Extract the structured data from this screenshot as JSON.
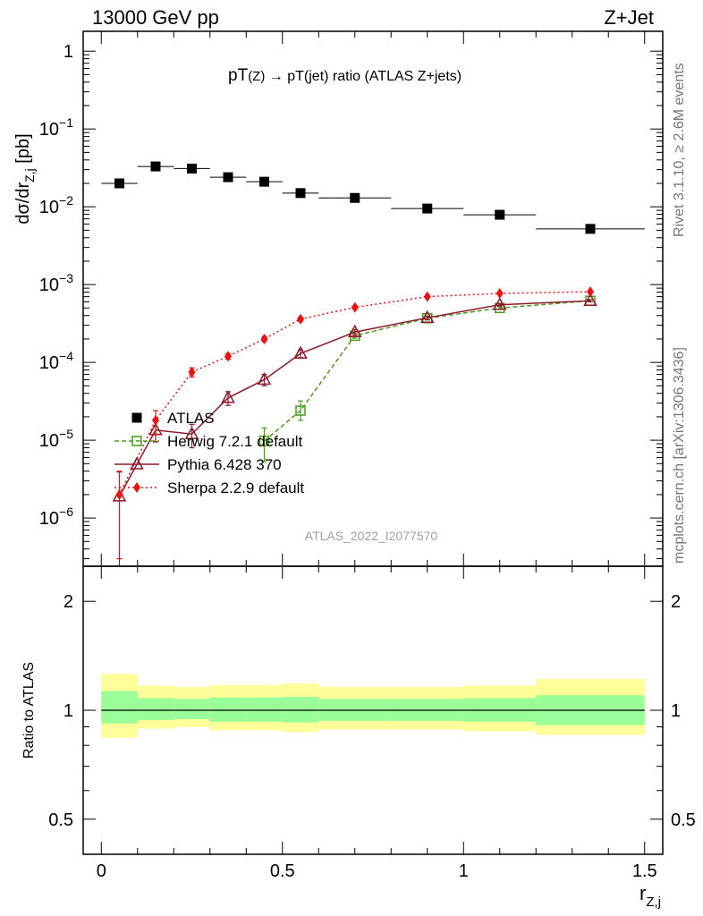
{
  "header": {
    "energy_label": "13000 GeV pp",
    "process_label": "Z+Jet",
    "rivet_label": "Rivet 3.1.10, ≥ 2.6M events",
    "mcplots_label": "mcplots.cern.ch [arXiv:1306.3436]",
    "analysis_id": "ATLAS_2022_I2077570"
  },
  "chart_data": [
    {
      "type": "scatter",
      "panel": "main",
      "title": "pT(Z) → pT(jet) ratio (ATLAS Z+jets)",
      "title_main": "pT",
      "title_sub": "(Z)",
      "title_rest": " → pT(jet) ratio (ATLAS Z+jets)",
      "ylabel": "dσ/dr",
      "ylabel_sub": "Z,j",
      "ylabel_unit": " [pb]",
      "yscale": "log",
      "xlim": [
        -0.05,
        1.55
      ],
      "ylim": [
        2.4e-07,
        1.8
      ],
      "ytick_labels": [
        {
          "base": "10",
          "exp": "−6",
          "value": 1e-06
        },
        {
          "base": "10",
          "exp": "−5",
          "value": 1e-05
        },
        {
          "base": "10",
          "exp": "−4",
          "value": 0.0001
        },
        {
          "base": "10",
          "exp": "−3",
          "value": 0.001
        },
        {
          "base": "10",
          "exp": "−2",
          "value": 0.01
        },
        {
          "base": "10",
          "exp": "−1",
          "value": 0.1
        },
        {
          "base": "1",
          "exp": "",
          "value": 1
        }
      ],
      "series": [
        {
          "name": "ATLAS",
          "color": "#000000",
          "marker": "square-filled",
          "x": [
            0.05,
            0.15,
            0.25,
            0.35,
            0.45,
            0.55,
            0.7,
            0.9,
            1.1,
            1.35
          ],
          "xerr": [
            0.05,
            0.05,
            0.05,
            0.05,
            0.05,
            0.05,
            0.1,
            0.1,
            0.1,
            0.15
          ],
          "y": [
            0.02,
            0.033,
            0.031,
            0.024,
            0.021,
            0.015,
            0.013,
            0.0095,
            0.0079,
            0.0052
          ]
        },
        {
          "name": "Herwig 7.2.1 default",
          "color": "#4a9a1c",
          "marker": "square-open",
          "line": "dashed",
          "x": [
            0.45,
            0.55,
            0.7,
            0.9,
            1.1,
            1.35
          ],
          "y": [
            9.8e-06,
            2.4e-05,
            0.00022,
            0.00037,
            0.0005,
            0.00062
          ],
          "yerr_low": [
            4.5e-06,
            6e-06,
            1.5e-05,
            2e-05,
            2e-05,
            2e-05
          ],
          "yerr_high": [
            4.5e-06,
            8e-06,
            1.5e-05,
            2e-05,
            2e-05,
            2e-05
          ]
        },
        {
          "name": "Pythia 6.428 370",
          "color": "#8b1a2b",
          "marker": "triangle-open",
          "line": "solid",
          "x": [
            0.05,
            0.15,
            0.25,
            0.35,
            0.45,
            0.55,
            0.7,
            0.9,
            1.1,
            1.35
          ],
          "y": [
            1.9e-06,
            1.35e-05,
            1.2e-05,
            3.5e-05,
            6e-05,
            0.00013,
            0.000245,
            0.000375,
            0.00055,
            0.00062
          ],
          "yerr_low": [
            1.8e-06,
            4e-06,
            4e-06,
            7e-06,
            1e-05,
            1.5e-05,
            2e-05,
            2e-05,
            2e-05,
            2e-05
          ],
          "yerr_high": [
            2e-06,
            5e-06,
            4e-06,
            7e-06,
            1e-05,
            1.5e-05,
            2e-05,
            2e-05,
            2e-05,
            2e-05
          ]
        },
        {
          "name": "Sherpa 2.2.9 default",
          "color": "#ee1111",
          "marker": "diamond-filled",
          "line": "dotted",
          "x": [
            0.05,
            0.15,
            0.25,
            0.35,
            0.45,
            0.55,
            0.7,
            0.9,
            1.1,
            1.35
          ],
          "y": [
            2e-06,
            1.8e-05,
            7.5e-05,
            0.00012,
            0.0002,
            0.00036,
            0.00051,
            0.0007,
            0.00077,
            0.00081
          ],
          "yerr_low": [
            1.7e-06,
            6e-06,
            1e-05,
            1e-05,
            1.5e-05,
            2e-05,
            2e-05,
            2e-05,
            2e-05,
            2e-05
          ],
          "yerr_high": [
            2e-06,
            6e-06,
            1e-05,
            1e-05,
            1.5e-05,
            2e-05,
            2e-05,
            2e-05,
            2e-05,
            2e-05
          ]
        }
      ],
      "legend": {
        "placement": "lower-left",
        "entries": [
          "ATLAS",
          "Herwig 7.2.1 default",
          "Pythia 6.428 370",
          "Sherpa 2.2.9 default"
        ]
      }
    },
    {
      "type": "area",
      "panel": "ratio",
      "ylabel": "Ratio to ATLAS",
      "xlabel": "r",
      "xlabel_sub": "Z,j",
      "yscale": "log",
      "xlim": [
        -0.05,
        1.55
      ],
      "ylim": [
        0.4,
        2.5
      ],
      "ytick_labels": [
        "0.5",
        "1",
        "2"
      ],
      "ytick_values": [
        0.5,
        1,
        2
      ],
      "xtick_labels": [
        "0",
        "0.5",
        "1",
        "1.5"
      ],
      "xtick_values": [
        0,
        0.5,
        1,
        1.5
      ],
      "reference_line": 1,
      "bins": [
        {
          "xlo": 0.0,
          "xhi": 0.1,
          "inner": [
            0.92,
            1.13
          ],
          "outer": [
            0.84,
            1.26
          ]
        },
        {
          "xlo": 0.1,
          "xhi": 0.2,
          "inner": [
            0.94,
            1.08
          ],
          "outer": [
            0.89,
            1.17
          ]
        },
        {
          "xlo": 0.2,
          "xhi": 0.3,
          "inner": [
            0.945,
            1.075
          ],
          "outer": [
            0.9,
            1.16
          ]
        },
        {
          "xlo": 0.3,
          "xhi": 0.4,
          "inner": [
            0.93,
            1.085
          ],
          "outer": [
            0.88,
            1.175
          ]
        },
        {
          "xlo": 0.4,
          "xhi": 0.5,
          "inner": [
            0.93,
            1.085
          ],
          "outer": [
            0.88,
            1.175
          ]
        },
        {
          "xlo": 0.5,
          "xhi": 0.6,
          "inner": [
            0.925,
            1.09
          ],
          "outer": [
            0.87,
            1.185
          ]
        },
        {
          "xlo": 0.6,
          "xhi": 0.8,
          "inner": [
            0.935,
            1.075
          ],
          "outer": [
            0.885,
            1.16
          ]
        },
        {
          "xlo": 0.8,
          "xhi": 1.0,
          "inner": [
            0.935,
            1.075
          ],
          "outer": [
            0.885,
            1.16
          ]
        },
        {
          "xlo": 1.0,
          "xhi": 1.2,
          "inner": [
            0.93,
            1.08
          ],
          "outer": [
            0.875,
            1.17
          ]
        },
        {
          "xlo": 1.2,
          "xhi": 1.5,
          "inner": [
            0.91,
            1.1
          ],
          "outer": [
            0.855,
            1.22
          ]
        }
      ],
      "colors": {
        "inner": "#99ff99",
        "outer": "#ffff99"
      }
    }
  ]
}
